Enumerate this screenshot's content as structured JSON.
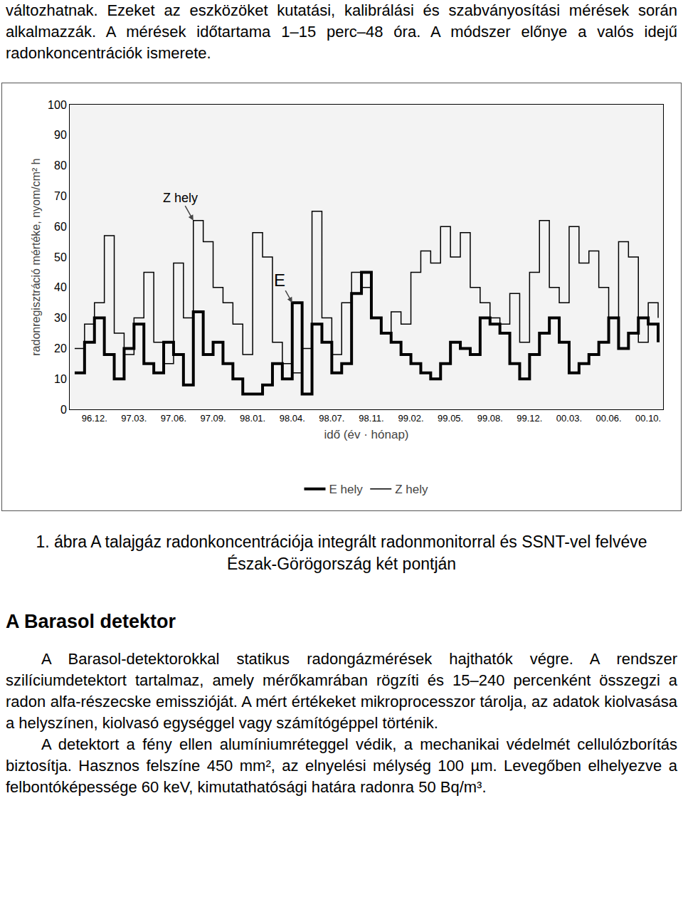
{
  "document": {
    "intro": "változhatnak. Ezeket az eszközöket kutatási, kalibrálási és szabványosítási mérések során alkalmazzák. A mérések időtartama 1–15 perc–48 óra. A módszer előnye a valós idejű radonkoncentrációk ismerete.",
    "caption": "1. ábra A talajgáz radonkoncentrációja integrált radonmonitorral és SSNT-vel felvéve Észak-Görögország két pontján",
    "heading": "A Barasol detektor",
    "paragraphs": [
      "A Barasol-detektorokkal statikus radongázmérések hajthatók végre. A rendszer szilíciumdetektort tartalmaz, amely mérőkamrában rögzíti és 15–240 percenként összegzi a radon alfa-részecske emisszióját. A mért értékeket mikroprocesszor tárolja, az adatok kiolvasása a helyszínen, kiolvasó egységgel vagy számítógéppel történik.",
      "A detektort a fény ellen alumíniumréteggel védik, a mechanikai védelmét cellulózborítás biztosítja. Hasznos felszíne 450 mm², az elnyelési mélység 100 µm. Levegőben elhelyezve a felbontóképessége 60 keV, kimutathatósági határa radonra 50 Bq/m³."
    ]
  },
  "chart_data": {
    "type": "line",
    "line_style": "step",
    "x_label": "idő (év · hónap)",
    "y_label": "radonregisztráció mértéke, nyom/cm² h",
    "categories": [
      null,
      null,
      "96.12.",
      null,
      null,
      null,
      "97.03.",
      null,
      null,
      null,
      "97.06.",
      null,
      null,
      null,
      "97.09.",
      null,
      null,
      null,
      "98.01.",
      null,
      null,
      null,
      "98.04.",
      null,
      null,
      null,
      "98.07.",
      null,
      null,
      null,
      "98.11.",
      null,
      null,
      null,
      "99.02.",
      null,
      null,
      null,
      "99.05.",
      null,
      null,
      null,
      "99.08.",
      null,
      null,
      null,
      "99.12.",
      null,
      null,
      null,
      "00.03.",
      null,
      null,
      null,
      "00.06.",
      null,
      null,
      null,
      "00.10.",
      null
    ],
    "series": [
      {
        "name": "E hely",
        "color": "#000000",
        "values": [
          12,
          22,
          30,
          18,
          10,
          20,
          28,
          15,
          12,
          22,
          18,
          8,
          32,
          18,
          22,
          15,
          10,
          5,
          5,
          8,
          15,
          10,
          35,
          5,
          28,
          22,
          12,
          15,
          38,
          45,
          30,
          25,
          22,
          18,
          15,
          12,
          10,
          15,
          22,
          20,
          18,
          30,
          28,
          25,
          15,
          10,
          18,
          25,
          30,
          22,
          12,
          15,
          18,
          22,
          30,
          20,
          25,
          30,
          28,
          22
        ]
      },
      {
        "name": "Z hely",
        "color": "#000000",
        "values": [
          20,
          28,
          35,
          57,
          25,
          18,
          30,
          45,
          22,
          15,
          48,
          30,
          62,
          55,
          40,
          35,
          28,
          18,
          58,
          50,
          22,
          15,
          12,
          20,
          65,
          30,
          18,
          35,
          45,
          40,
          30,
          25,
          32,
          28,
          45,
          52,
          48,
          60,
          50,
          58,
          40,
          35,
          30,
          28,
          38,
          22,
          45,
          62,
          40,
          35,
          60,
          48,
          52,
          40,
          30,
          55,
          50,
          22,
          35,
          30
        ]
      }
    ],
    "annotations": [
      {
        "text": "Z hely",
        "series": "Z hely",
        "x": 12
      },
      {
        "text": "E",
        "series": "E hely",
        "x": 22
      }
    ],
    "ylim": [
      0,
      100
    ],
    "yticks": [
      0,
      10,
      20,
      30,
      40,
      50,
      60,
      70,
      80,
      90,
      100
    ],
    "grid": false,
    "legend": "bottom"
  }
}
